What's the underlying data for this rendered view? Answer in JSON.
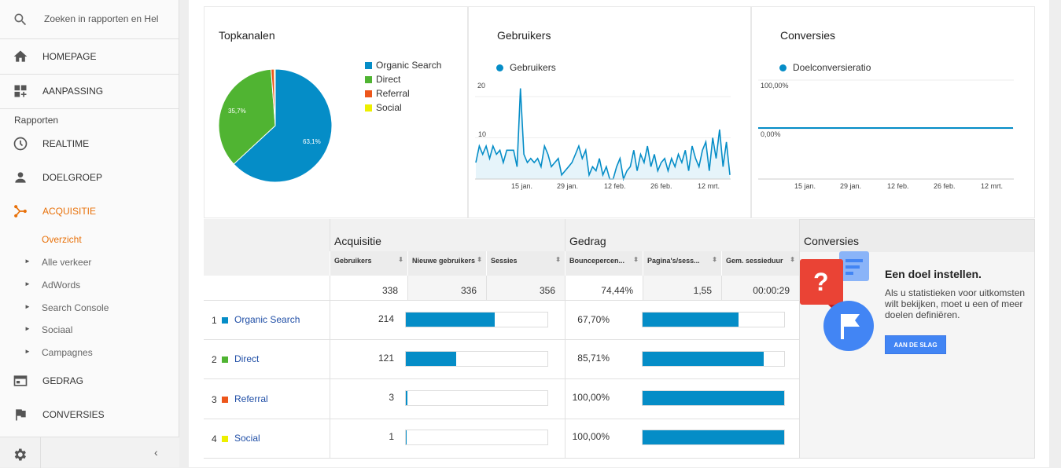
{
  "sidebar": {
    "search_placeholder": "Zoeken in rapporten en Hel",
    "homepage": "HOMEPAGE",
    "aanpassing": "AANPASSING",
    "reports_label": "Rapporten",
    "realtime": "REALTIME",
    "doelgroep": "DOELGROEP",
    "acquisitie": "ACQUISITIE",
    "overzicht": "Overzicht",
    "sub_items": [
      "Alle verkeer",
      "AdWords",
      "Search Console",
      "Sociaal",
      "Campagnes"
    ],
    "gedrag": "GEDRAG",
    "conversies": "CONVERSIES"
  },
  "topchannels": {
    "title": "Topkanalen",
    "legend": [
      "Organic Search",
      "Direct",
      "Referral",
      "Social"
    ],
    "slice_labels": [
      "63,1%",
      "35,7%"
    ]
  },
  "users_card": {
    "title": "Gebruikers",
    "legend": "Gebruikers",
    "y_ticks": [
      "20",
      "10"
    ],
    "x_ticks": [
      "15 jan.",
      "29 jan.",
      "12 feb.",
      "26 feb.",
      "12 mrt."
    ]
  },
  "conv_card": {
    "title": "Conversies",
    "legend": "Doelconversieratio",
    "y_ticks": [
      "100,00%",
      "0,00%"
    ],
    "x_ticks": [
      "15 jan.",
      "29 jan.",
      "12 feb.",
      "26 feb.",
      "12 mrt."
    ]
  },
  "table": {
    "group_acquisitie": "Acquisitie",
    "group_gedrag": "Gedrag",
    "group_conversies": "Conversies",
    "columns": [
      "Gebruikers",
      "Nieuwe gebruikers",
      "Sessies",
      "Bouncepercen...",
      "Pagina's/sess...",
      "Gem. sessieduur"
    ],
    "totals": [
      "338",
      "336",
      "356",
      "74,44%",
      "1,55",
      "00:00:29"
    ],
    "rows": [
      {
        "rank": "1",
        "name": "Organic Search",
        "users": "214",
        "bounce": "67,70%",
        "users_frac": 0.63,
        "bounce_frac": 0.677
      },
      {
        "rank": "2",
        "name": "Direct",
        "users": "121",
        "bounce": "85,71%",
        "users_frac": 0.357,
        "bounce_frac": 0.857
      },
      {
        "rank": "3",
        "name": "Referral",
        "users": "3",
        "bounce": "100,00%",
        "users_frac": 0.009,
        "bounce_frac": 1.0
      },
      {
        "rank": "4",
        "name": "Social",
        "users": "1",
        "bounce": "100,00%",
        "users_frac": 0.003,
        "bounce_frac": 1.0
      }
    ]
  },
  "goal": {
    "title": "Een doel instellen.",
    "text": "Als u statistieken voor uitkomsten wilt bekijken, moet u een of meer doelen definiëren.",
    "button": "AAN DE SLAG"
  },
  "colors": {
    "organic": "#058dc7",
    "direct": "#50b432",
    "referral": "#ed561b",
    "social": "#edef00",
    "accent": "#e8710a",
    "button": "#4285f4"
  },
  "chart_data": [
    {
      "type": "pie",
      "title": "Topkanalen",
      "categories": [
        "Organic Search",
        "Direct",
        "Referral",
        "Social"
      ],
      "values": [
        63.1,
        35.7,
        0.9,
        0.3
      ]
    },
    {
      "type": "area",
      "title": "Gebruikers",
      "series": [
        {
          "name": "Gebruikers",
          "values": [
            4,
            8,
            6,
            8,
            5,
            8,
            6,
            7,
            4,
            7,
            7,
            7,
            3,
            22,
            6,
            4,
            5,
            4,
            5,
            3,
            8,
            6,
            3,
            4,
            5,
            1,
            2,
            3,
            4,
            6,
            8,
            5,
            7,
            1,
            3,
            2,
            5,
            1,
            3,
            0,
            0,
            3,
            5,
            0,
            2,
            3,
            7,
            2,
            6,
            4,
            8,
            3,
            6,
            2,
            4,
            5,
            2,
            5,
            3,
            6,
            4,
            7,
            2,
            8,
            5,
            3,
            7,
            9,
            2,
            10,
            5,
            12,
            3,
            9,
            1
          ]
        }
      ],
      "ylim": [
        0,
        24
      ],
      "x_ticks": [
        "15 jan.",
        "29 jan.",
        "12 feb.",
        "26 feb.",
        "12 mrt."
      ]
    },
    {
      "type": "line",
      "title": "Conversies",
      "series": [
        {
          "name": "Doelconversieratio",
          "values": [
            0,
            0
          ]
        }
      ],
      "y_ticks": [
        "100,00%",
        "0,00%"
      ],
      "x_ticks": [
        "15 jan.",
        "29 jan.",
        "12 feb.",
        "26 feb.",
        "12 mrt."
      ]
    }
  ]
}
